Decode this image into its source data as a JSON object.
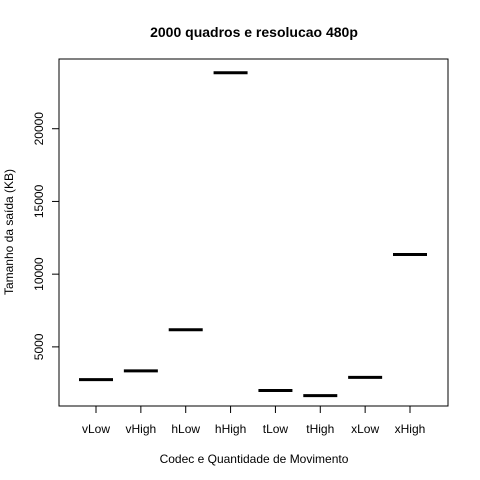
{
  "chart_data": {
    "type": "boxplot",
    "title": "2000 quadros e resolucao 480p",
    "xlabel": "Codec e Quantidade de Movimento",
    "ylabel": "Tamanho da saída (KB)",
    "categories": [
      "vLow",
      "vHigh",
      "hLow",
      "hHigh",
      "tLow",
      "tHigh",
      "xLow",
      "xHigh"
    ],
    "values": [
      2750,
      3350,
      6180,
      23850,
      2000,
      1650,
      2900,
      11350
    ],
    "yticks": [
      5000,
      10000,
      15000,
      20000
    ],
    "ylim": [
      1000,
      24500
    ],
    "grid": false,
    "colors": {
      "line": "#000000",
      "background": "#ffffff"
    }
  }
}
